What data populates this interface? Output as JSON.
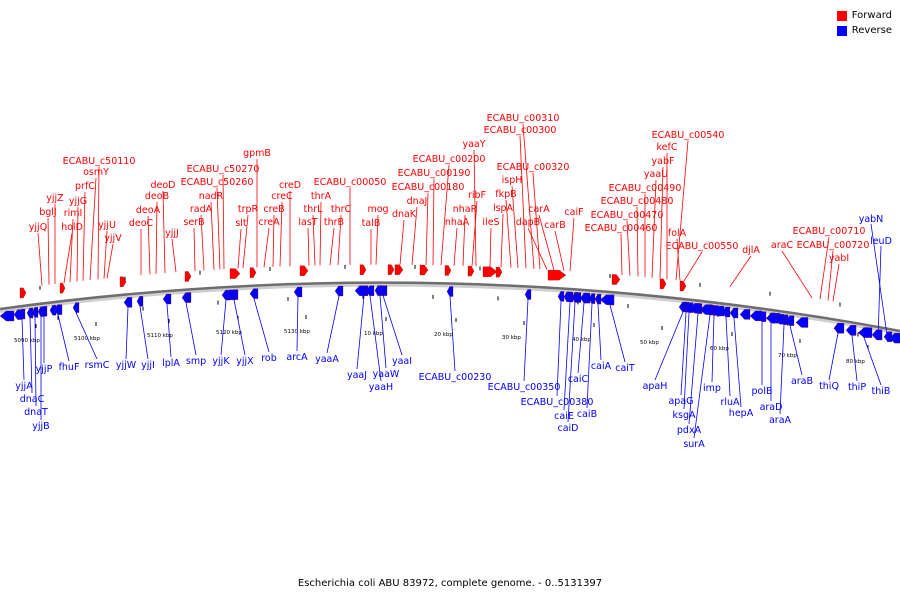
{
  "caption": "Escherichia coli ABU 83972, complete genome. - 0..5131397",
  "legend": [
    {
      "label": "Forward",
      "color": "#ff0000"
    },
    {
      "label": "Reverse",
      "color": "#0000ff"
    }
  ],
  "colors": {
    "forward": "#ff0000",
    "reverse": "#0000ff",
    "backbone": "#7a7a7a"
  },
  "axis_labels": [
    "5090 kbp",
    "5100 kbp",
    "5110 kbp",
    "5120 kbp",
    "5130 kbp",
    "10 kbp",
    "20 kbp",
    "30 kbp",
    "40 kbp",
    "50 kbp",
    "60 kbp",
    "70 kbp",
    "80 kbp"
  ],
  "forward_genes": [
    "yjjQ",
    "bglJ",
    "yjjZ",
    "holD",
    "rimI",
    "yjjG",
    "prfC",
    "osmY",
    "ECABU_c50110",
    "yjjV",
    "yjjU",
    "deoC",
    "deoA",
    "deoB",
    "deoD",
    "yjjJ",
    "serB",
    "radA",
    "nadR",
    "ECABU_c50260",
    "ECABU_c50270",
    "slt",
    "trpR",
    "gpmB",
    "creA",
    "creB",
    "creC",
    "creD",
    "lasT",
    "thrL",
    "thrA",
    "thrB",
    "thrC",
    "ECABU_c00050",
    "talB",
    "mog",
    "dnaK",
    "dnaJ",
    "ECABU_c00180",
    "ECABU_c00190",
    "ECABU_c00200",
    "nhaA",
    "nhaR",
    "ribF",
    "ileS",
    "lspA",
    "fkpB",
    "ispH",
    "yaaY",
    "ECABU_c00300",
    "ECABU_c00310",
    "ECABU_c00320",
    "dapB",
    "carA",
    "carB",
    "caiF",
    "ECABU_c00460",
    "ECABU_c00470",
    "ECABU_c00480",
    "ECABU_c00490",
    "yaaU",
    "yabF",
    "kefC",
    "ECABU_c00540",
    "folA",
    "ECABU_c00550",
    "djlA",
    "araC",
    "ECABU_c00710",
    "ECABU_c00720",
    "yabI"
  ],
  "reverse_genes": [
    "yjjA",
    "dnaC",
    "dnaT",
    "yjjB",
    "yjjP",
    "fhuF",
    "rsmC",
    "yjjW",
    "yjjI",
    "lplA",
    "smp",
    "yjjK",
    "yjjX",
    "rob",
    "arcA",
    "yaaA",
    "yaaJ",
    "yaaH",
    "yaaW",
    "yaaI",
    "ECABU_c00230",
    "ECABU_c00350",
    "ECABU_c00380",
    "caiE",
    "caiD",
    "caiC",
    "caiB",
    "caiA",
    "caiT",
    "apaH",
    "apaG",
    "ksgA",
    "pdxA",
    "surA",
    "imp",
    "rluA",
    "hepA",
    "polB",
    "araD",
    "araA",
    "araB",
    "thiQ",
    "thiP",
    "thiB",
    "leuD",
    "yabN"
  ]
}
